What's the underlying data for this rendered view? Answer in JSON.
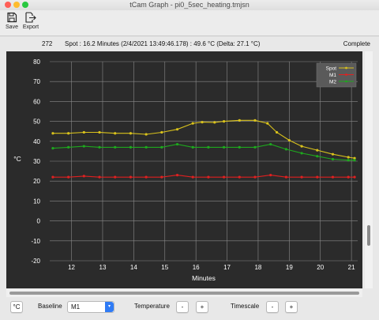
{
  "window": {
    "title": "tCam Graph - pi0_5sec_heating.tmjsn"
  },
  "toolbar": {
    "save_label": "Save",
    "export_label": "Export"
  },
  "status": {
    "count": "272",
    "info": "Spot : 16.2 Minutes (2/4/2021 13:49:46.178) : 49.6 °C (Delta: 27.1 °C)",
    "state": "Complete"
  },
  "bottom": {
    "unit_button": "°C",
    "baseline_label": "Baseline",
    "baseline_value": "M1",
    "temperature_label": "Temperature",
    "timescale_label": "Timescale",
    "minus": "-",
    "plus": "+"
  },
  "colors": {
    "spot": "#d9c21c",
    "m1": "#e02020",
    "m2": "#1ea81e",
    "plot_bg": "#2b2b2b",
    "grid": "#8a8a8a"
  },
  "chart_data": {
    "type": "line",
    "xlabel": "Minutes",
    "ylabel": "°C",
    "xlim": [
      11.3,
      21.2
    ],
    "ylim": [
      -20,
      80
    ],
    "xticks": [
      12,
      13,
      14,
      15,
      16,
      17,
      18,
      19,
      20,
      21
    ],
    "yticks": [
      -20,
      -10,
      0,
      10,
      20,
      30,
      40,
      50,
      60,
      70,
      80
    ],
    "grid": true,
    "legend_position": "top-right",
    "series": [
      {
        "name": "Spot",
        "color": "#d9c21c",
        "x": [
          11.4,
          11.9,
          12.4,
          12.9,
          13.4,
          13.9,
          14.4,
          14.9,
          15.4,
          15.9,
          16.2,
          16.6,
          16.9,
          17.4,
          17.9,
          18.3,
          18.6,
          19.0,
          19.4,
          19.9,
          20.4,
          20.9,
          21.1
        ],
        "values": [
          44,
          44,
          44.5,
          44.5,
          44,
          44,
          43.5,
          44.5,
          46,
          49,
          49.6,
          49.5,
          50,
          50.5,
          50.5,
          49,
          44.5,
          40.5,
          37.5,
          35.5,
          33.5,
          32,
          31.5
        ]
      },
      {
        "name": "M1",
        "color": "#e02020",
        "x": [
          11.4,
          11.9,
          12.4,
          12.9,
          13.4,
          13.9,
          14.4,
          14.9,
          15.4,
          15.9,
          16.4,
          16.9,
          17.4,
          17.9,
          18.4,
          18.9,
          19.4,
          19.9,
          20.4,
          20.9,
          21.1
        ],
        "values": [
          22,
          22,
          22.5,
          22,
          22,
          22,
          22,
          22,
          23,
          22,
          22,
          22,
          22,
          22,
          23,
          22,
          22,
          22,
          22,
          22,
          22
        ]
      },
      {
        "name": "M2",
        "color": "#1ea81e",
        "x": [
          11.4,
          11.9,
          12.4,
          12.9,
          13.4,
          13.9,
          14.4,
          14.9,
          15.4,
          15.9,
          16.4,
          16.9,
          17.4,
          17.9,
          18.4,
          18.9,
          19.4,
          19.9,
          20.4,
          20.9,
          21.1
        ],
        "values": [
          36.5,
          37,
          37.5,
          37,
          37,
          37,
          37,
          37,
          38.5,
          37,
          37,
          37,
          37,
          37,
          38.5,
          36,
          34,
          32.5,
          31,
          30.5,
          30.5
        ]
      }
    ]
  }
}
